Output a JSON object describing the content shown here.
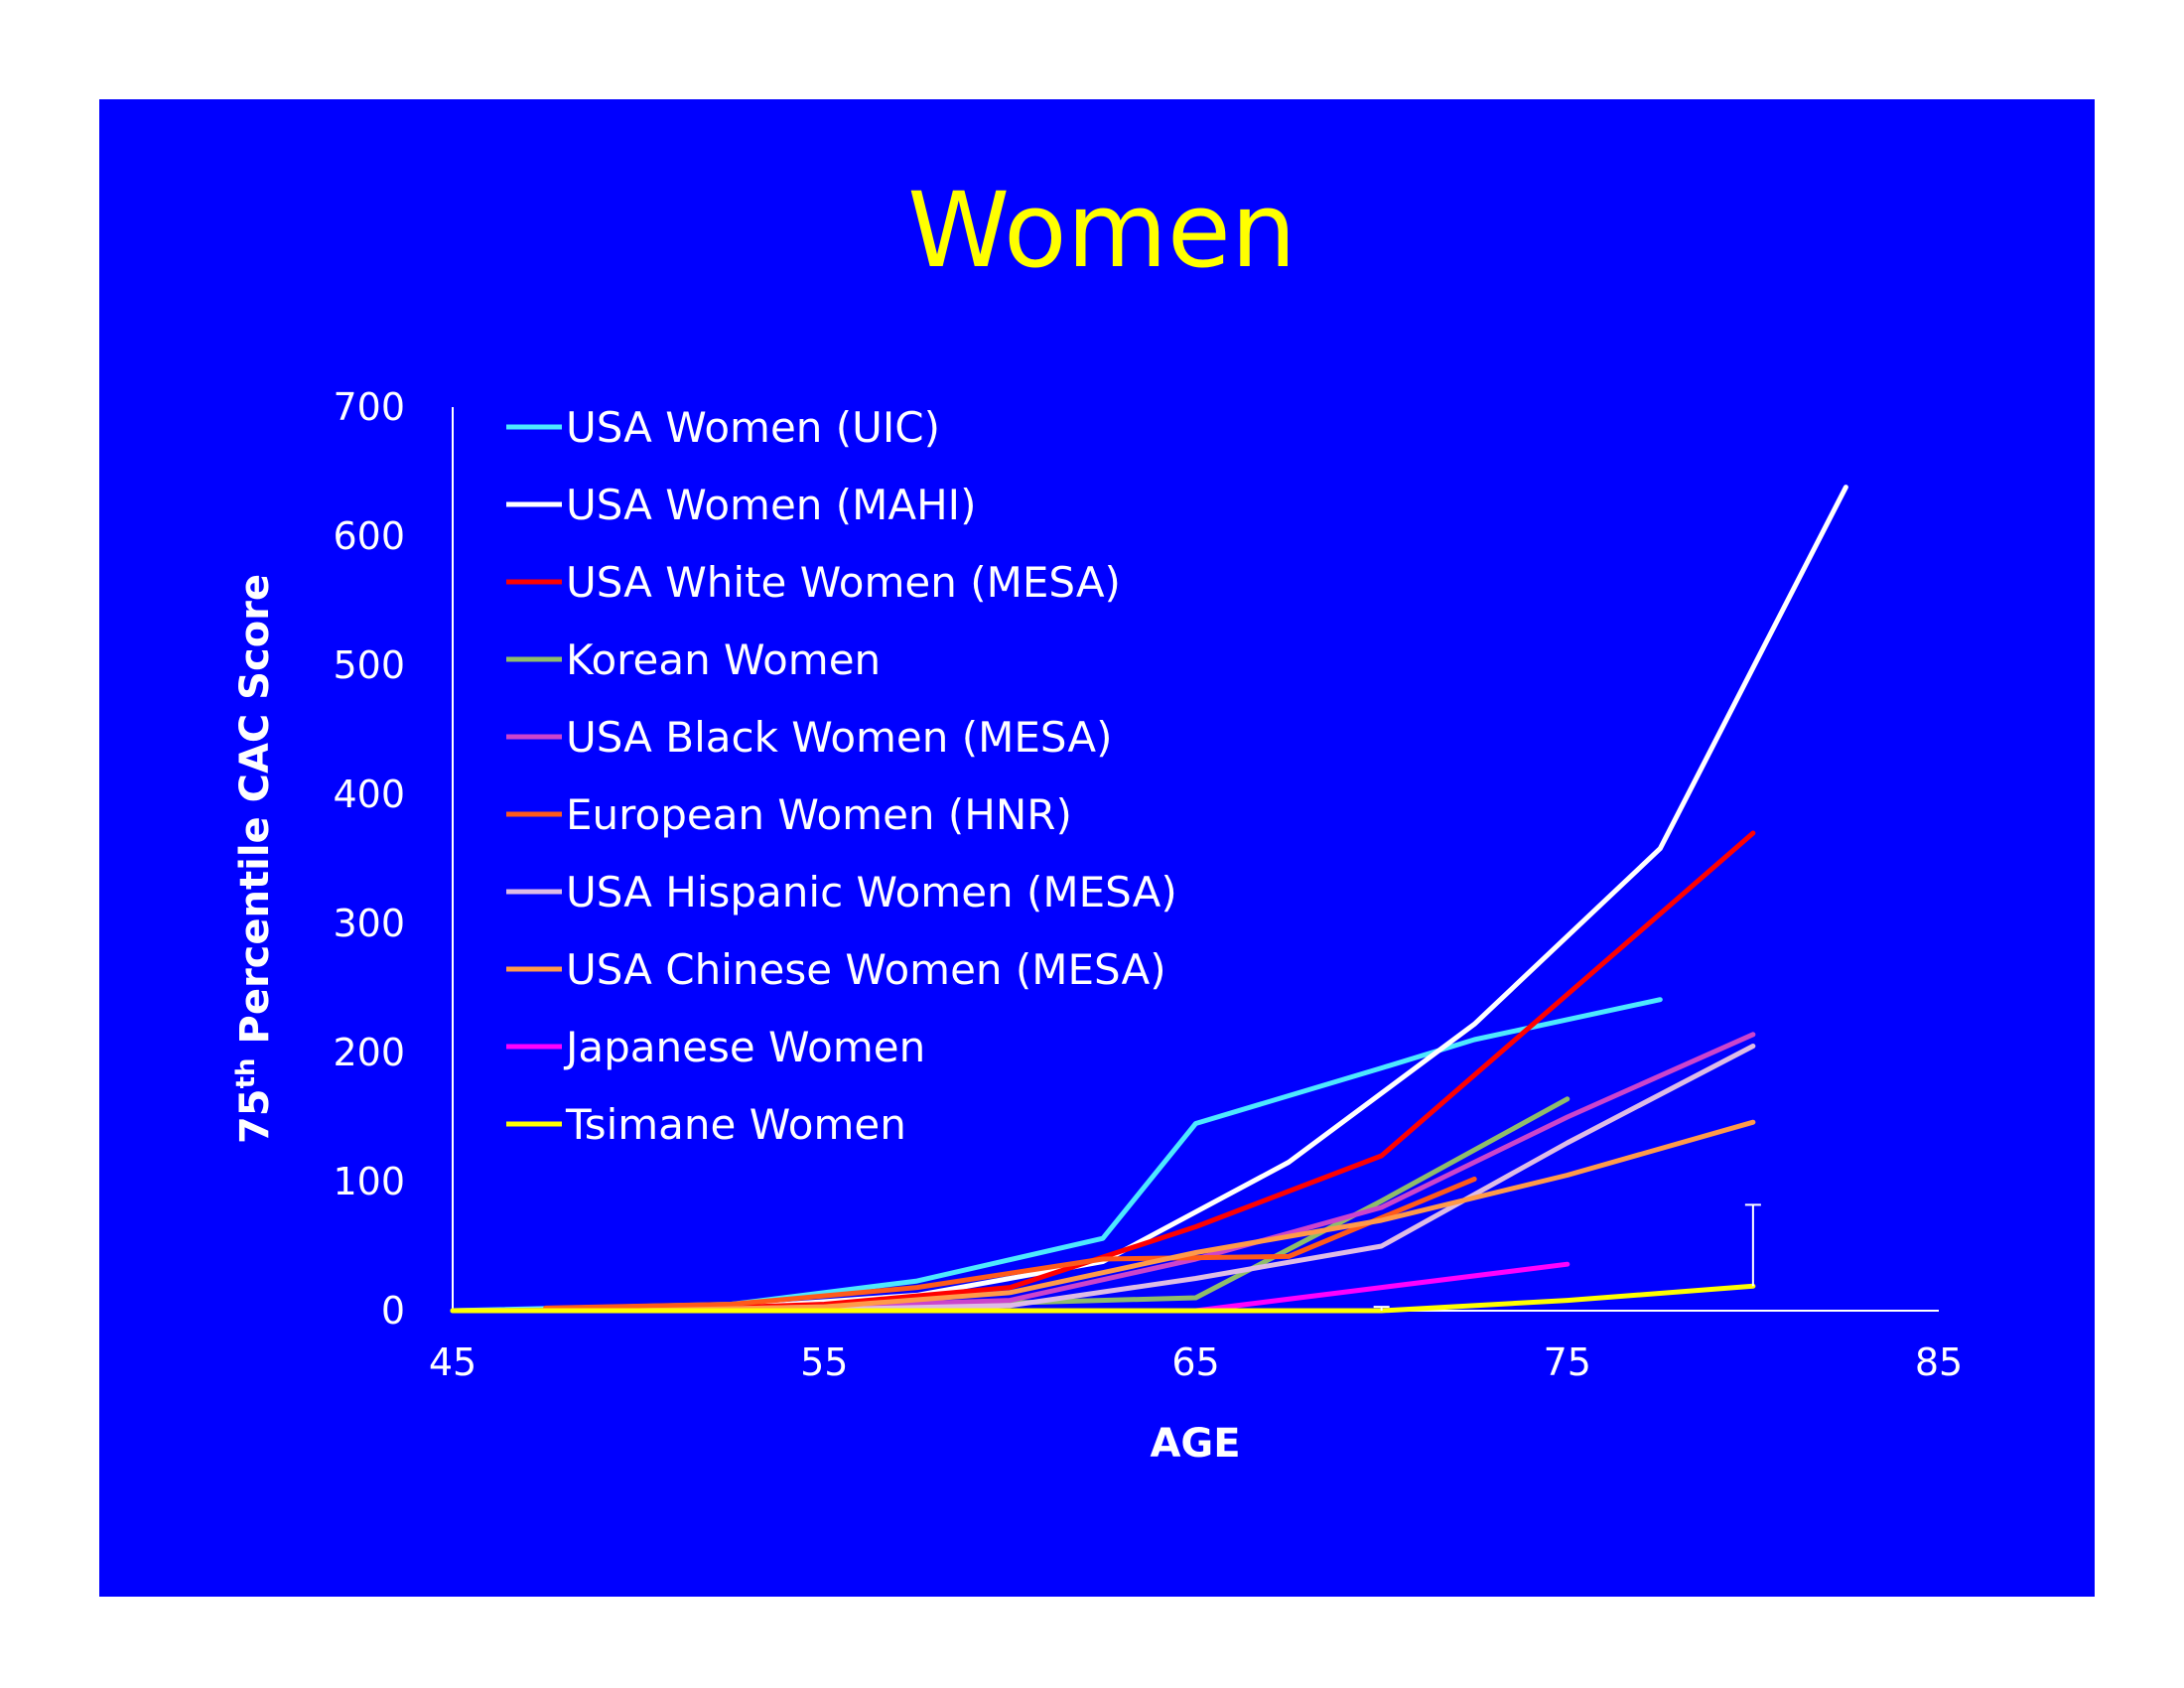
{
  "chart_data": {
    "type": "line",
    "title": "Women",
    "xlabel": "AGE",
    "ylabel": "75th Percentile CAC Score",
    "ylabel_main": "75",
    "ylabel_sup": "th",
    "ylabel_rest": " Percentile CAC Score",
    "xlim": [
      45,
      85
    ],
    "ylim": [
      0,
      700
    ],
    "x_ticks": [
      45,
      55,
      65,
      75,
      85
    ],
    "y_ticks": [
      0,
      100,
      200,
      300,
      400,
      500,
      600,
      700
    ],
    "grid": false,
    "legend_position": "top-left",
    "background_color": "#0000ff",
    "title_color": "#ffff00",
    "series": [
      {
        "name": "USA Women (UIC)",
        "color": "#4de8ff",
        "x": [
          45,
          52.5,
          57.5,
          62.5,
          65,
          70,
          72.5,
          77.5
        ],
        "y": [
          0,
          5,
          23,
          56,
          145,
          188,
          210,
          241
        ]
      },
      {
        "name": "USA Women (MAHI)",
        "color": "#ffffff",
        "x": [
          45,
          52.5,
          57.5,
          62.5,
          67.5,
          72.5,
          77.5,
          82.5
        ],
        "y": [
          0,
          2,
          12,
          38,
          115,
          222,
          358,
          638
        ]
      },
      {
        "name": "USA White Women (MESA)",
        "color": "#ff0000",
        "x": [
          50,
          55,
          60,
          65,
          70,
          75,
          80
        ],
        "y": [
          0,
          5,
          18,
          65,
          120,
          245,
          370
        ]
      },
      {
        "name": "Korean Women",
        "color": "#8fbc6b",
        "x": [
          45,
          55,
          65,
          70,
          75
        ],
        "y": [
          0,
          2,
          10,
          85,
          164
        ]
      },
      {
        "name": "USA Black Women (MESA)",
        "color": "#cc44cc",
        "x": [
          50,
          55,
          60,
          65,
          70,
          75,
          80
        ],
        "y": [
          0,
          3,
          8,
          40,
          80,
          150,
          214
        ]
      },
      {
        "name": "European Women (HNR)",
        "color": "#ff5a1a",
        "x": [
          47.5,
          52.5,
          57.5,
          62.5,
          67.5,
          72.5
        ],
        "y": [
          2,
          5,
          18,
          40,
          42,
          102
        ]
      },
      {
        "name": "USA Hispanic Women (MESA)",
        "color": "#ddbbe6",
        "x": [
          50,
          55,
          60,
          65,
          70,
          75,
          80
        ],
        "y": [
          0,
          1,
          4,
          25,
          50,
          130,
          205
        ]
      },
      {
        "name": "USA Chinese Women (MESA)",
        "color": "#ff9a4a",
        "x": [
          50,
          55,
          60,
          65,
          70,
          75,
          80
        ],
        "y": [
          0,
          3,
          14,
          45,
          70,
          105,
          146
        ]
      },
      {
        "name": "Japanese Women",
        "color": "#ff00ff",
        "x": [
          65,
          70,
          75
        ],
        "y": [
          0,
          18,
          36
        ]
      },
      {
        "name": "Tsimane Women",
        "color": "#ffff00",
        "x": [
          45,
          70,
          75,
          80
        ],
        "y": [
          0,
          0,
          8,
          19
        ]
      }
    ],
    "error_bars": [
      {
        "series": "Tsimane Women",
        "x": 80,
        "y": 19,
        "upper": 82
      },
      {
        "series": "Tsimane Women",
        "x": 70,
        "y": 0,
        "upper": 3
      }
    ]
  }
}
